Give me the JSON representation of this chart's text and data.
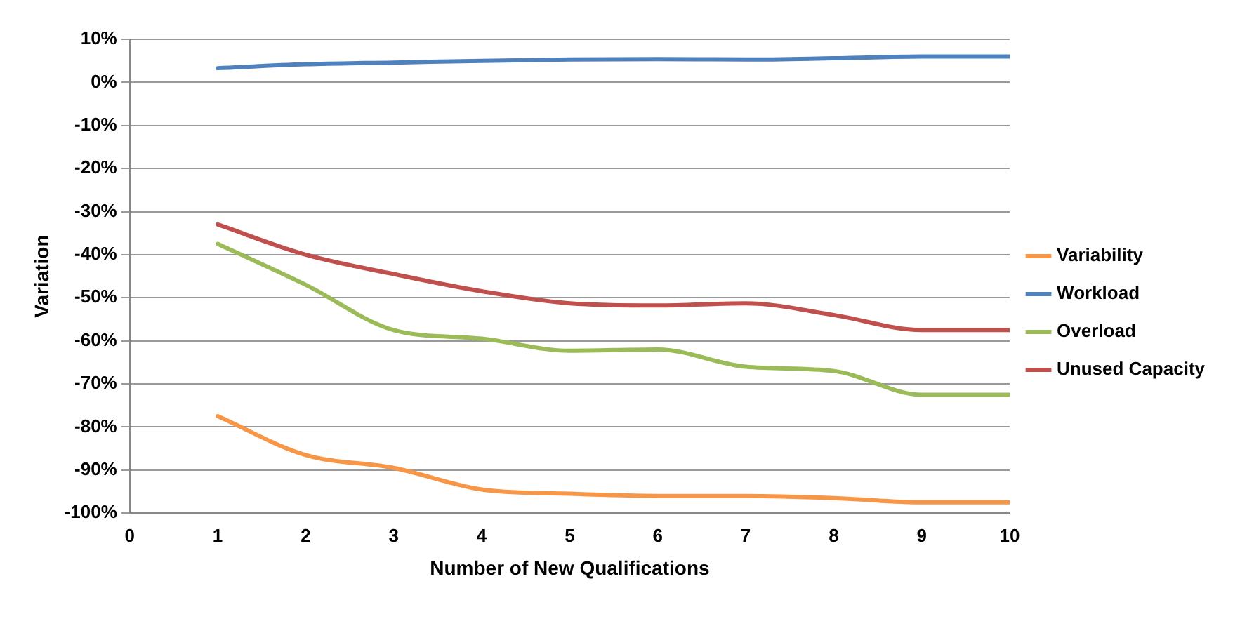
{
  "chart_data": {
    "type": "line",
    "xlabel": "Number of New Qualifications",
    "ylabel": "Variation",
    "x": [
      1,
      2,
      3,
      4,
      5,
      6,
      7,
      8,
      9,
      10
    ],
    "xlim": [
      0,
      10
    ],
    "xticks": [
      0,
      1,
      2,
      3,
      4,
      5,
      6,
      7,
      8,
      9,
      10
    ],
    "ylim": [
      -100,
      10
    ],
    "yticks": [
      {
        "value": -100,
        "label": "-100%"
      },
      {
        "value": -90,
        "label": "-90%"
      },
      {
        "value": -80,
        "label": "-80%"
      },
      {
        "value": -70,
        "label": "-70%"
      },
      {
        "value": -60,
        "label": "-60%"
      },
      {
        "value": -50,
        "label": "-50%"
      },
      {
        "value": -40,
        "label": "-40%"
      },
      {
        "value": -30,
        "label": "-30%"
      },
      {
        "value": -20,
        "label": "-20%"
      },
      {
        "value": -10,
        "label": "-10%"
      },
      {
        "value": 0,
        "label": "0%"
      },
      {
        "value": 10,
        "label": "10%"
      }
    ],
    "grid": "y",
    "legend": "right",
    "marker": "none",
    "line_style": "solid",
    "series": [
      {
        "name": "Variability",
        "color": "#f79646",
        "values": [
          -77.5,
          -86.5,
          -89.5,
          -94.5,
          -95.5,
          -96,
          -96,
          -96.5,
          -97.5,
          -97.5
        ]
      },
      {
        "name": "Workload",
        "color": "#4f81bd",
        "values": [
          3.3,
          4.2,
          4.6,
          5,
          5.3,
          5.4,
          5.3,
          5.6,
          6,
          6
        ]
      },
      {
        "name": "Overload",
        "color": "#9bbb59",
        "values": [
          -37.5,
          -47,
          -57.5,
          -59.5,
          -62.3,
          -62,
          -66,
          -67,
          -72.5,
          -72.5
        ]
      },
      {
        "name": "Unused Capacity",
        "color": "#c0504d",
        "values": [
          -33,
          -40,
          -44.5,
          -48.5,
          -51.3,
          -51.8,
          -51.3,
          -54,
          -57.5,
          -57.5
        ]
      }
    ]
  }
}
